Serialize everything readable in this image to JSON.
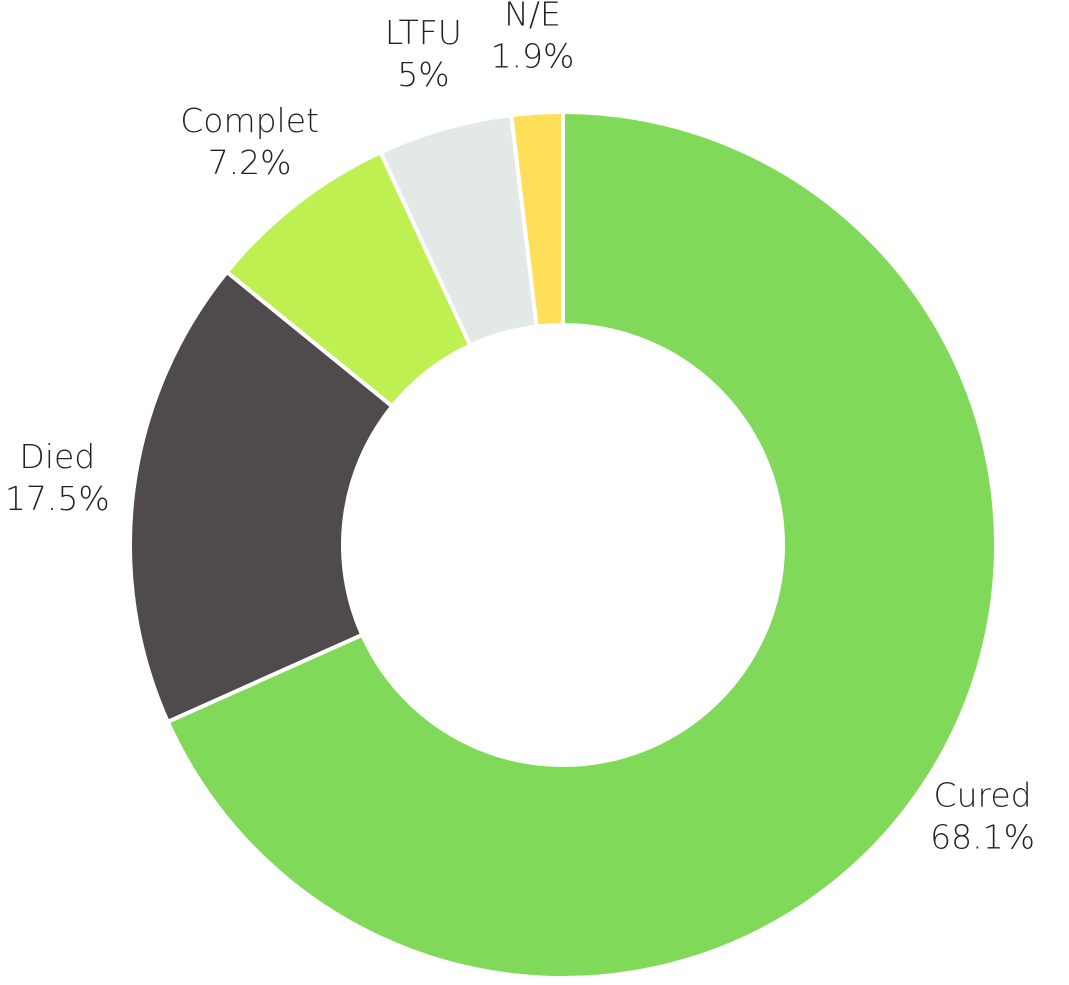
{
  "chart_data": {
    "type": "donut",
    "categories": [
      "Cured",
      "Died",
      "Complet",
      "LTFU",
      "N/E"
    ],
    "values": [
      68.1,
      17.5,
      7.2,
      5,
      1.9
    ],
    "value_labels": [
      "68.1%",
      "17.5%",
      "7.2%",
      "5%",
      "1.9%"
    ],
    "colors": [
      "#80d959",
      "#4f4a4b",
      "#bdf050",
      "#e3e9e6",
      "#ffde59"
    ]
  }
}
